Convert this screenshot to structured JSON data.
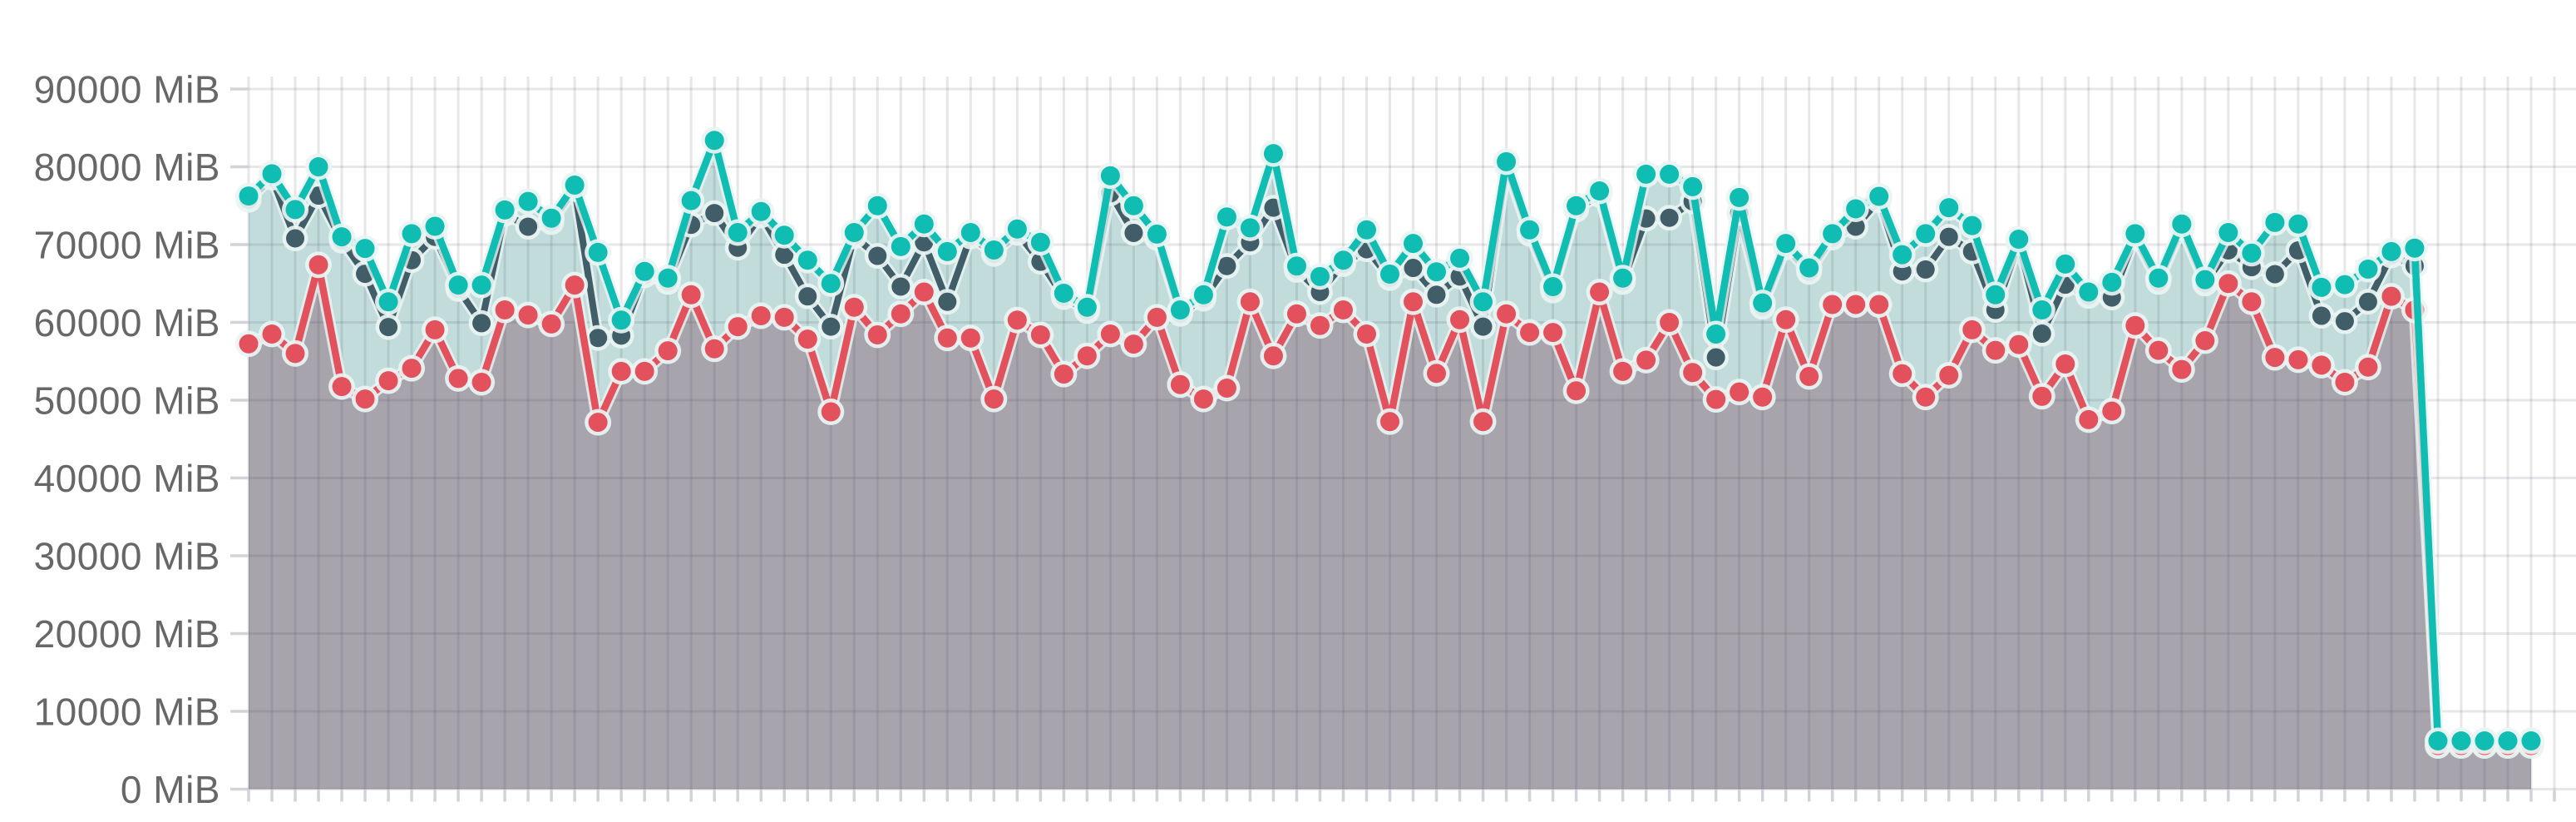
{
  "page": {
    "background": "#ffffff",
    "description": "memory usage time-series chart"
  },
  "chart_data": {
    "type": "line",
    "title": "",
    "xlabel": "",
    "ylabel": "",
    "unit": "MiB",
    "grid": true,
    "legend_position": "none",
    "x_tick_labels_visible": false,
    "y_axis": {
      "min": 0,
      "max": 90000,
      "step": 10000
    },
    "y_tick_labels": [
      "90000 MiB",
      "80000 MiB",
      "70000 MiB",
      "60000 MiB",
      "50000 MiB",
      "40000 MiB",
      "30000 MiB",
      "20000 MiB",
      "10000 MiB",
      "0 MiB"
    ],
    "num_points": 99,
    "colors": {
      "teal_line": "#10bdb2",
      "teal_area": "#c2dcdb",
      "slate_line": "#415d68",
      "red_line": "#e3515d",
      "gray_area": "#a8a4ac",
      "marker_halo": "#e9f4f3",
      "gridline": "rgba(70,70,90,0.13)",
      "tick": "#d2d2d8",
      "axis_label": "#676767"
    },
    "series": [
      {
        "name": "teal",
        "color": "#10bdb2",
        "area_fill": "#c2dcdb",
        "values": [
          76250,
          79100,
          74500,
          80000,
          71000,
          69500,
          62650,
          71400,
          72350,
          64800,
          64800,
          74450,
          75550,
          73400,
          77650,
          69000,
          60300,
          66550,
          65700,
          75650,
          83400,
          71550,
          74250,
          71200,
          68000,
          65000,
          71550,
          75000,
          69750,
          72650,
          69100,
          71550,
          69300,
          72000,
          70300,
          63750,
          61950,
          78850,
          75000,
          71350,
          61600,
          63550,
          73550,
          72150,
          81700,
          67250,
          65900,
          68000,
          71900,
          66200,
          70150,
          66500,
          68250,
          62650,
          80650,
          71900,
          64600,
          75000,
          76900,
          65700,
          79050,
          79050,
          77450,
          58500,
          76050,
          62500,
          70150,
          67000,
          71400,
          74600,
          76200,
          68700,
          71400,
          74750,
          72450,
          63550,
          70700,
          61600,
          67500,
          63900,
          65150,
          71400,
          65700,
          72650,
          65500,
          71550,
          68900,
          72850,
          72650,
          64500,
          64850,
          66850,
          69100,
          69550,
          6200,
          6200,
          6200,
          6200,
          6200
        ]
      },
      {
        "name": "slate",
        "color": "#415d68",
        "area_fill": null,
        "values": [
          75750,
          78600,
          70800,
          76300,
          70500,
          66250,
          59400,
          68000,
          71000,
          64300,
          59900,
          73950,
          72300,
          72900,
          77150,
          58000,
          58300,
          66050,
          65200,
          72550,
          74050,
          69600,
          73750,
          68700,
          63350,
          59450,
          71050,
          68550,
          64600,
          70300,
          62650,
          71050,
          68800,
          71500,
          67800,
          63250,
          61450,
          76600,
          71500,
          70850,
          61100,
          63050,
          67250,
          70300,
          74750,
          66750,
          63900,
          67500,
          69400,
          65700,
          67000,
          63550,
          65900,
          59450,
          80150,
          71400,
          64100,
          74500,
          76400,
          65200,
          73350,
          73450,
          75550,
          55500,
          74050,
          62000,
          69650,
          66500,
          70900,
          72300,
          75700,
          66550,
          66800,
          71000,
          69100,
          61600,
          70200,
          58550,
          64850,
          63400,
          63200,
          70900,
          65200,
          72150,
          65000,
          69250,
          67100,
          66200,
          69250,
          60850,
          60150,
          62650,
          68600,
          67250,
          5900,
          5900,
          5900,
          5900,
          5900
        ]
      },
      {
        "name": "red",
        "color": "#e3515d",
        "area_fill": "#a8a4ac",
        "values": [
          57250,
          58500,
          56000,
          67400,
          51750,
          50150,
          52500,
          54100,
          59050,
          52800,
          52300,
          61600,
          60950,
          59800,
          64800,
          47150,
          53700,
          53700,
          56350,
          63550,
          56600,
          59450,
          60850,
          60650,
          57850,
          48500,
          61950,
          58400,
          61100,
          63900,
          58000,
          58000,
          50150,
          60300,
          58400,
          53350,
          55700,
          58500,
          57200,
          60650,
          52000,
          50150,
          51550,
          62650,
          55700,
          61100,
          59600,
          61600,
          58500,
          47250,
          62650,
          53450,
          60350,
          47250,
          61100,
          58700,
          58700,
          51200,
          63900,
          53700,
          55150,
          60000,
          53550,
          50100,
          51050,
          50400,
          60350,
          53050,
          62300,
          62300,
          62300,
          53400,
          50400,
          53200,
          59050,
          56400,
          57150,
          50500,
          54650,
          47500,
          48600,
          59600,
          56400,
          53950,
          57650,
          65000,
          62650,
          55500,
          55200,
          54500,
          52300,
          54250,
          63350,
          61600,
          5600,
          5600,
          5600,
          5600,
          5600
        ]
      }
    ]
  }
}
